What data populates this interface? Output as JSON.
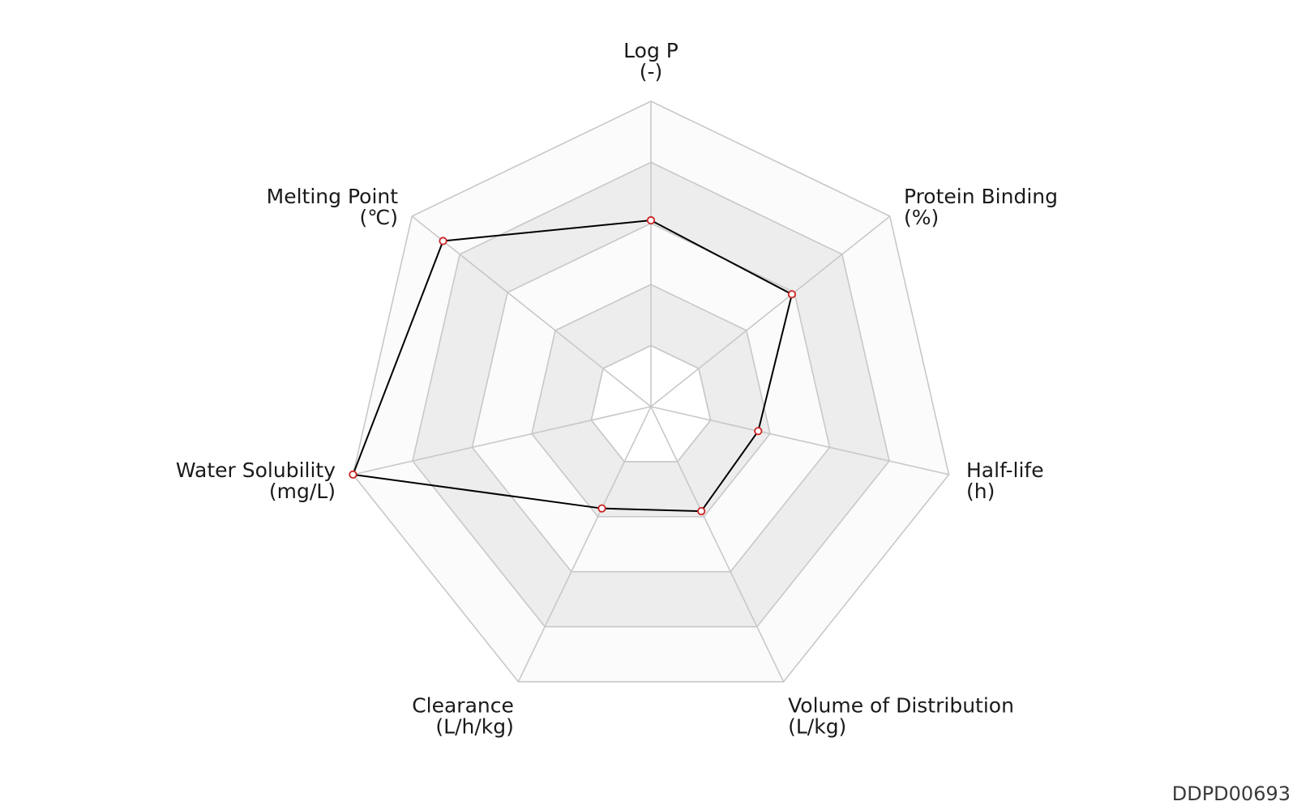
{
  "chart_data": {
    "type": "radar",
    "axes": [
      {
        "name": "Log P",
        "unit": "(-)"
      },
      {
        "name": "Protein Binding",
        "unit": "(%)"
      },
      {
        "name": "Half-life",
        "unit": "(h)"
      },
      {
        "name": "Volume of Distribution",
        "unit": "(L/kg)"
      },
      {
        "name": "Clearance",
        "unit": "(L/h/kg)"
      },
      {
        "name": "Water Solubility",
        "unit": "(mg/L)"
      },
      {
        "name": "Melting Point",
        "unit": "(℃)"
      }
    ],
    "values": [
      0.61,
      0.59,
      0.36,
      0.38,
      0.37,
      1.0,
      0.87
    ],
    "range": [
      0,
      1
    ],
    "rings": 5,
    "grid": true,
    "colors": {
      "series_line": "#000000",
      "marker_edge": "#cc2222",
      "marker_fill": "#ffffff",
      "ring_shade": "#ededed",
      "ring_light": "#fbfbfb",
      "grid_line": "#c8c8c8"
    }
  },
  "footer": {
    "id_text": "DDPD00693"
  }
}
